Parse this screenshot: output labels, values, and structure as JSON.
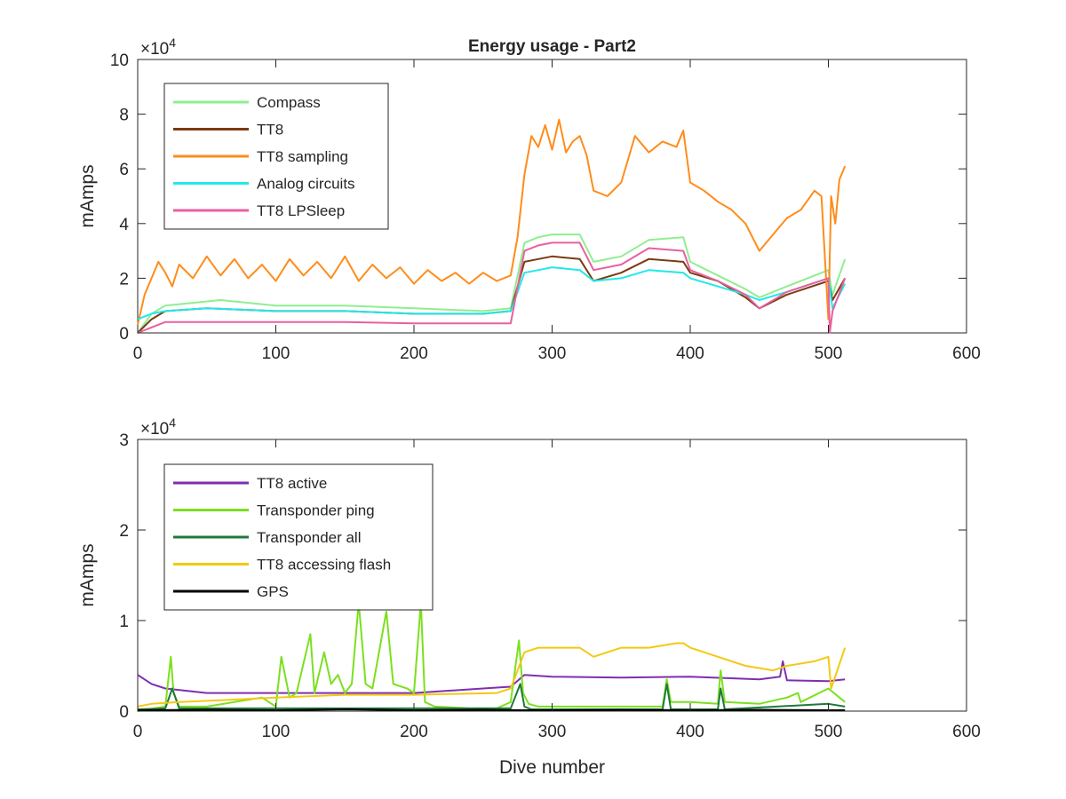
{
  "chart_data": [
    {
      "type": "line",
      "title": "Energy usage - Part2",
      "xlabel": "",
      "ylabel": "mAmps",
      "xlim": [
        0,
        600
      ],
      "ylim": [
        0,
        100000
      ],
      "xticks": [
        0,
        100,
        200,
        300,
        400,
        500,
        600
      ],
      "yticks": [
        0,
        20000,
        40000,
        60000,
        80000,
        100000
      ],
      "xtick_labels": [
        "0",
        "100",
        "200",
        "300",
        "400",
        "500",
        "600"
      ],
      "ytick_labels": [
        "0",
        "2",
        "4",
        "6",
        "8",
        "10"
      ],
      "exponent_label": "×10",
      "exponent_power": "4",
      "grid": false,
      "legend_position": "top-left",
      "series": [
        {
          "name": "Compass",
          "color": "#90ee90",
          "x": [
            0,
            10,
            20,
            40,
            60,
            80,
            100,
            150,
            200,
            250,
            270,
            280,
            290,
            300,
            320,
            330,
            350,
            370,
            395,
            400,
            420,
            440,
            450,
            470,
            500,
            503,
            512
          ],
          "y": [
            0,
            7000,
            10000,
            11000,
            12000,
            11000,
            10000,
            10000,
            9000,
            8000,
            9000,
            33000,
            35000,
            36000,
            36000,
            26000,
            28000,
            34000,
            35000,
            26000,
            21000,
            16000,
            13000,
            17000,
            23000,
            14000,
            27000
          ]
        },
        {
          "name": "TT8",
          "color": "#7a3b12",
          "x": [
            0,
            10,
            20,
            50,
            100,
            150,
            200,
            250,
            270,
            280,
            290,
            300,
            320,
            330,
            350,
            370,
            395,
            400,
            420,
            440,
            450,
            470,
            500,
            503,
            512
          ],
          "y": [
            0,
            5000,
            8000,
            9000,
            8000,
            8000,
            7000,
            7000,
            8000,
            26000,
            27000,
            28000,
            27000,
            19000,
            22000,
            27000,
            26000,
            22000,
            19000,
            13000,
            9000,
            14000,
            19000,
            12000,
            20000
          ]
        },
        {
          "name": "TT8 sampling",
          "color": "#ff8c1a",
          "x": [
            0,
            5,
            10,
            15,
            20,
            25,
            30,
            40,
            50,
            60,
            70,
            80,
            90,
            100,
            110,
            120,
            130,
            140,
            150,
            160,
            170,
            180,
            190,
            200,
            210,
            220,
            230,
            240,
            250,
            260,
            270,
            275,
            280,
            285,
            290,
            295,
            300,
            305,
            310,
            315,
            320,
            325,
            330,
            340,
            350,
            360,
            370,
            380,
            390,
            395,
            400,
            410,
            420,
            430,
            440,
            450,
            460,
            470,
            480,
            490,
            495,
            500,
            502,
            505,
            508,
            512
          ],
          "y": [
            3000,
            14000,
            20000,
            26000,
            22000,
            17000,
            25000,
            20000,
            28000,
            21000,
            27000,
            20000,
            25000,
            19000,
            27000,
            21000,
            26000,
            20000,
            28000,
            19000,
            25000,
            20000,
            24000,
            18000,
            23000,
            19000,
            22000,
            18000,
            22000,
            19000,
            21000,
            35000,
            58000,
            72000,
            68000,
            76000,
            67000,
            78000,
            66000,
            70000,
            72000,
            65000,
            52000,
            50000,
            55000,
            72000,
            66000,
            70000,
            68000,
            74000,
            55000,
            52000,
            48000,
            45000,
            40000,
            30000,
            36000,
            42000,
            45000,
            52000,
            50000,
            5000,
            50000,
            40000,
            56000,
            61000
          ]
        },
        {
          "name": "Analog circuits",
          "color": "#22e8e8",
          "x": [
            0,
            10,
            20,
            50,
            100,
            150,
            200,
            250,
            270,
            280,
            290,
            300,
            320,
            330,
            350,
            370,
            395,
            400,
            420,
            440,
            450,
            470,
            500,
            503,
            512
          ],
          "y": [
            5000,
            7000,
            8000,
            9000,
            8000,
            8000,
            7000,
            7000,
            8000,
            22000,
            23000,
            24000,
            23000,
            19000,
            20000,
            23000,
            22000,
            20000,
            17000,
            14000,
            12000,
            15000,
            20000,
            9000,
            18000
          ]
        },
        {
          "name": "TT8 LPSleep",
          "color": "#e8609e",
          "x": [
            0,
            10,
            20,
            50,
            100,
            150,
            200,
            250,
            270,
            280,
            290,
            300,
            320,
            330,
            350,
            370,
            395,
            400,
            420,
            440,
            450,
            470,
            500,
            501,
            503,
            512
          ],
          "y": [
            0,
            2000,
            4000,
            4000,
            4000,
            4000,
            3500,
            3500,
            3500,
            30000,
            32000,
            33000,
            33000,
            23000,
            25000,
            31000,
            30000,
            23000,
            19000,
            14000,
            9000,
            15000,
            20000,
            0,
            8000,
            20000
          ]
        }
      ]
    },
    {
      "type": "line",
      "title": "",
      "xlabel": "Dive number",
      "ylabel": "mAmps",
      "xlim": [
        0,
        600
      ],
      "ylim": [
        0,
        30000
      ],
      "xticks": [
        0,
        100,
        200,
        300,
        400,
        500,
        600
      ],
      "yticks": [
        0,
        10000,
        20000,
        30000
      ],
      "xtick_labels": [
        "0",
        "100",
        "200",
        "300",
        "400",
        "500",
        "600"
      ],
      "ytick_labels": [
        "0",
        "1",
        "2",
        "3"
      ],
      "exponent_label": "×10",
      "exponent_power": "4",
      "grid": false,
      "legend_position": "top-left",
      "series": [
        {
          "name": "TT8 active",
          "color": "#7e2fb0",
          "x": [
            0,
            10,
            20,
            50,
            100,
            150,
            200,
            250,
            270,
            280,
            290,
            300,
            350,
            400,
            450,
            465,
            467,
            470,
            500,
            512
          ],
          "y": [
            4000,
            3000,
            2500,
            2000,
            2000,
            2000,
            2000,
            2500,
            2700,
            4000,
            3900,
            3800,
            3700,
            3800,
            3500,
            3800,
            5500,
            3400,
            3300,
            3500
          ]
        },
        {
          "name": "Transponder ping",
          "color": "#7be01e",
          "x": [
            0,
            20,
            24,
            26,
            30,
            50,
            90,
            100,
            104,
            110,
            115,
            125,
            128,
            135,
            140,
            145,
            150,
            155,
            160,
            165,
            170,
            180,
            185,
            195,
            200,
            205,
            208,
            215,
            240,
            260,
            270,
            276,
            279,
            283,
            290,
            340,
            380,
            383,
            386,
            400,
            420,
            422,
            425,
            450,
            470,
            478,
            480,
            500,
            512
          ],
          "y": [
            0,
            500,
            6000,
            2000,
            500,
            500,
            1500,
            500,
            6000,
            1500,
            2000,
            8500,
            2000,
            6500,
            3000,
            4000,
            2000,
            3000,
            12000,
            3000,
            2500,
            11000,
            3000,
            2500,
            2000,
            12000,
            1000,
            500,
            300,
            300,
            1000,
            7800,
            2000,
            800,
            500,
            500,
            500,
            3500,
            1000,
            1000,
            800,
            4500,
            1000,
            800,
            1500,
            2000,
            1000,
            2500,
            1000
          ]
        },
        {
          "name": "Transponder all",
          "color": "#1e7a3a",
          "x": [
            0,
            20,
            25,
            30,
            100,
            200,
            270,
            277,
            280,
            285,
            300,
            380,
            383,
            386,
            420,
            422,
            425,
            500,
            512
          ],
          "y": [
            200,
            300,
            2500,
            300,
            300,
            300,
            300,
            3000,
            500,
            200,
            200,
            200,
            3000,
            200,
            200,
            2500,
            200,
            800,
            500
          ]
        },
        {
          "name": "TT8 accessing flash",
          "color": "#f5c814",
          "x": [
            0,
            10,
            30,
            60,
            100,
            150,
            200,
            260,
            270,
            280,
            290,
            300,
            320,
            330,
            350,
            370,
            390,
            395,
            400,
            420,
            440,
            460,
            470,
            490,
            500,
            502,
            512
          ],
          "y": [
            500,
            800,
            1000,
            1200,
            1500,
            1800,
            1800,
            2000,
            2500,
            6500,
            7000,
            7000,
            7000,
            6000,
            7000,
            7000,
            7500,
            7500,
            7000,
            6000,
            5000,
            4500,
            5000,
            5500,
            6000,
            2500,
            7000
          ]
        },
        {
          "name": "GPS",
          "color": "#000000",
          "x": [
            0,
            50,
            100,
            150,
            200,
            250,
            280,
            300,
            350,
            400,
            450,
            500,
            512
          ],
          "y": [
            100,
            150,
            100,
            200,
            100,
            150,
            100,
            100,
            150,
            100,
            150,
            100,
            100
          ]
        }
      ]
    }
  ]
}
